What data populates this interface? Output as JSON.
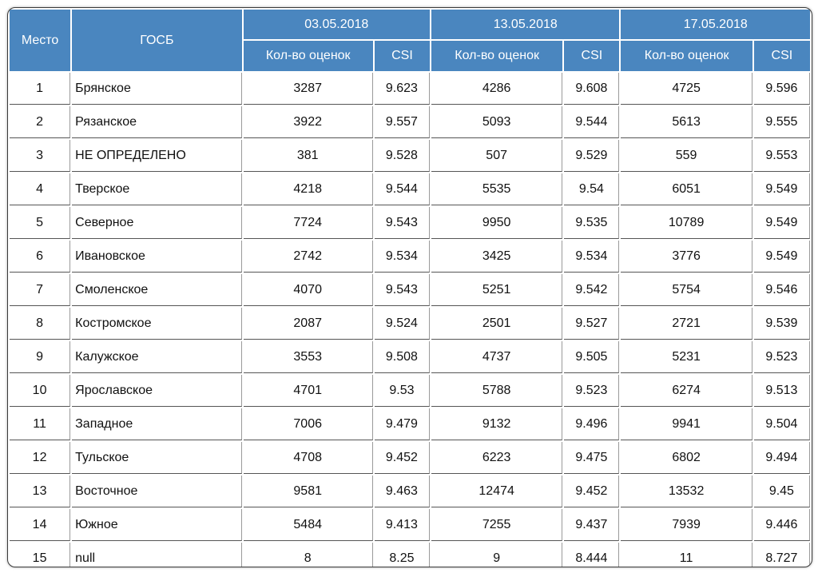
{
  "header": {
    "place": "Место",
    "gosb": "ГОСБ",
    "dates": [
      "03.05.2018",
      "13.05.2018",
      "17.05.2018"
    ],
    "count_label": "Кол-во оценок",
    "csi_label": "CSI"
  },
  "colors": {
    "header_bg": "#4a86bf",
    "header_text": "#ffffff"
  },
  "rows": [
    {
      "place": "1",
      "name": "Брянское",
      "values": [
        "3287",
        "9.623",
        "4286",
        "9.608",
        "4725",
        "9.596"
      ]
    },
    {
      "place": "2",
      "name": "Рязанское",
      "values": [
        "3922",
        "9.557",
        "5093",
        "9.544",
        "5613",
        "9.555"
      ]
    },
    {
      "place": "3",
      "name": "НЕ ОПРЕДЕЛЕНО",
      "values": [
        "381",
        "9.528",
        "507",
        "9.529",
        "559",
        "9.553"
      ]
    },
    {
      "place": "4",
      "name": "Тверское",
      "values": [
        "4218",
        "9.544",
        "5535",
        "9.54",
        "6051",
        "9.549"
      ]
    },
    {
      "place": "5",
      "name": "Северное",
      "values": [
        "7724",
        "9.543",
        "9950",
        "9.535",
        "10789",
        "9.549"
      ]
    },
    {
      "place": "6",
      "name": "Ивановское",
      "values": [
        "2742",
        "9.534",
        "3425",
        "9.534",
        "3776",
        "9.549"
      ]
    },
    {
      "place": "7",
      "name": "Смоленское",
      "values": [
        "4070",
        "9.543",
        "5251",
        "9.542",
        "5754",
        "9.546"
      ]
    },
    {
      "place": "8",
      "name": "Костромское",
      "values": [
        "2087",
        "9.524",
        "2501",
        "9.527",
        "2721",
        "9.539"
      ]
    },
    {
      "place": "9",
      "name": "Калужское",
      "values": [
        "3553",
        "9.508",
        "4737",
        "9.505",
        "5231",
        "9.523"
      ]
    },
    {
      "place": "10",
      "name": "Ярославское",
      "values": [
        "4701",
        "9.53",
        "5788",
        "9.523",
        "6274",
        "9.513"
      ]
    },
    {
      "place": "11",
      "name": "Западное",
      "values": [
        "7006",
        "9.479",
        "9132",
        "9.496",
        "9941",
        "9.504"
      ]
    },
    {
      "place": "12",
      "name": "Тульское",
      "values": [
        "4708",
        "9.452",
        "6223",
        "9.475",
        "6802",
        "9.494"
      ]
    },
    {
      "place": "13",
      "name": "Восточное",
      "values": [
        "9581",
        "9.463",
        "12474",
        "9.452",
        "13532",
        "9.45"
      ]
    },
    {
      "place": "14",
      "name": "Южное",
      "values": [
        "5484",
        "9.413",
        "7255",
        "9.437",
        "7939",
        "9.446"
      ]
    },
    {
      "place": "15",
      "name": "null",
      "values": [
        "8",
        "8.25",
        "9",
        "8.444",
        "11",
        "8.727"
      ]
    }
  ]
}
